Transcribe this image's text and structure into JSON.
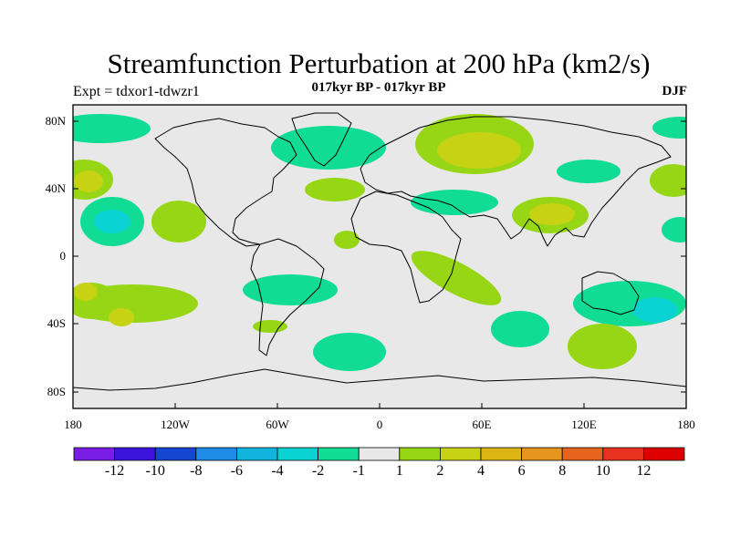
{
  "title": "Streamfunction Perturbation at 200 hPa (km2/s)",
  "experiment": "Expt = tdxor1-tdwzr1",
  "subtitle": "017kyr BP - 017kyr BP",
  "season": "DJF",
  "lat_labels": [
    "80N",
    "40N",
    "0",
    "40S",
    "80S"
  ],
  "lon_labels": [
    "180",
    "120W",
    "60W",
    "0",
    "60E",
    "120E",
    "180"
  ],
  "colorbar": {
    "colors": [
      "#7a1ee6",
      "#3c14dc",
      "#1446d2",
      "#1e8ce6",
      "#10b4dc",
      "#0ad2d2",
      "#10dc96",
      "#e8e8e8",
      "#96d614",
      "#c8d214",
      "#dcb414",
      "#e6961e",
      "#e6641e",
      "#e6321e",
      "#dc0000"
    ],
    "labels": [
      "-12",
      "-10",
      "-8",
      "-6",
      "-4",
      "-2",
      "-1",
      "1",
      "2",
      "4",
      "6",
      "8",
      "10",
      "12"
    ]
  },
  "map_style": {
    "background": "#e8e8e8",
    "coast_color": "#000000"
  }
}
